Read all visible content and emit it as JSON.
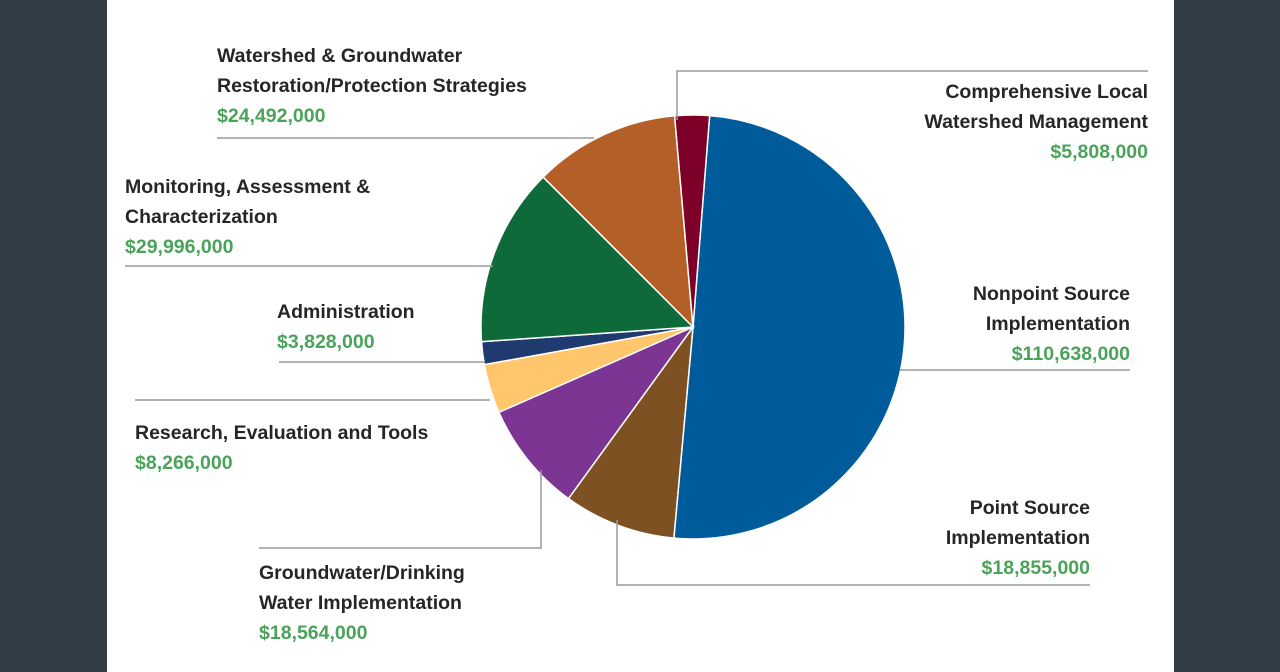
{
  "chart_data": {
    "type": "pie",
    "title": "",
    "slices": [
      {
        "name_lines": [
          "Nonpoint Source",
          "Implementation"
        ],
        "value_label": "$110,638,000",
        "value": 110638000,
        "color": "#005b9a"
      },
      {
        "name_lines": [
          "Point Source",
          "Implementation"
        ],
        "value_label": "$18,855,000",
        "value": 18855000,
        "color": "#7d5121"
      },
      {
        "name_lines": [
          "Groundwater/Drinking",
          "Water Implementation"
        ],
        "value_label": "$18,564,000",
        "value": 18564000,
        "color": "#7c3592"
      },
      {
        "name_lines": [
          "Research, Evaluation and Tools"
        ],
        "value_label": "$8,266,000",
        "value": 8266000,
        "color": "#ffc66b"
      },
      {
        "name_lines": [
          "Administration"
        ],
        "value_label": "$3,828,000",
        "value": 3828000,
        "color": "#1f3a6e"
      },
      {
        "name_lines": [
          "Monitoring, Assessment &",
          "Characterization"
        ],
        "value_label": "$29,996,000",
        "value": 29996000,
        "color": "#0e6a38"
      },
      {
        "name_lines": [
          "Watershed & Groundwater",
          "Restoration/Protection Strategies"
        ],
        "value_label": "$24,492,000",
        "value": 24492000,
        "color": "#b45f28"
      },
      {
        "name_lines": [
          "Comprehensive Local",
          "Watershed Management"
        ],
        "value_label": "$5,808,000",
        "value": 5808000,
        "color": "#7d0029"
      }
    ],
    "value_label_color": "#4ba35a",
    "leader_line_color": "#9a9a9a"
  }
}
